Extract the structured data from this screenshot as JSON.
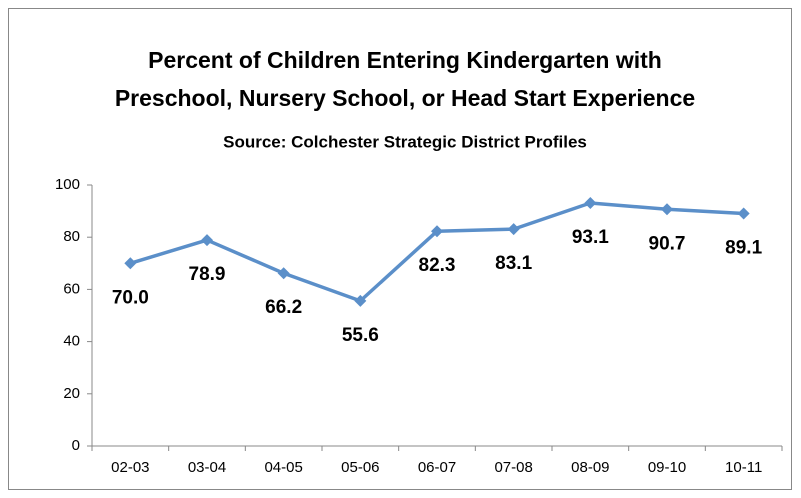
{
  "chart_data": {
    "type": "line",
    "title": [
      "Percent of Children Entering Kindergarten with",
      "Preschool, Nursery School, or Head Start Experience"
    ],
    "subtitle": "Source:  Colchester Strategic District Profiles",
    "categories": [
      "02-03",
      "03-04",
      "04-05",
      "05-06",
      "06-07",
      "07-08",
      "08-09",
      "09-10",
      "10-11"
    ],
    "series": [
      {
        "name": "Percent",
        "color": "#5b8fc9",
        "values": [
          70.0,
          78.9,
          66.2,
          55.6,
          82.3,
          83.1,
          93.1,
          90.7,
          89.1
        ],
        "value_labels": [
          "70.0",
          "78.9",
          "66.2",
          "55.6",
          "82.3",
          "83.1",
          "93.1",
          "90.7",
          "89.1"
        ]
      }
    ],
    "ylim": [
      0,
      100
    ],
    "yticks": [
      0,
      20,
      40,
      60,
      80,
      100
    ],
    "grid": false
  }
}
